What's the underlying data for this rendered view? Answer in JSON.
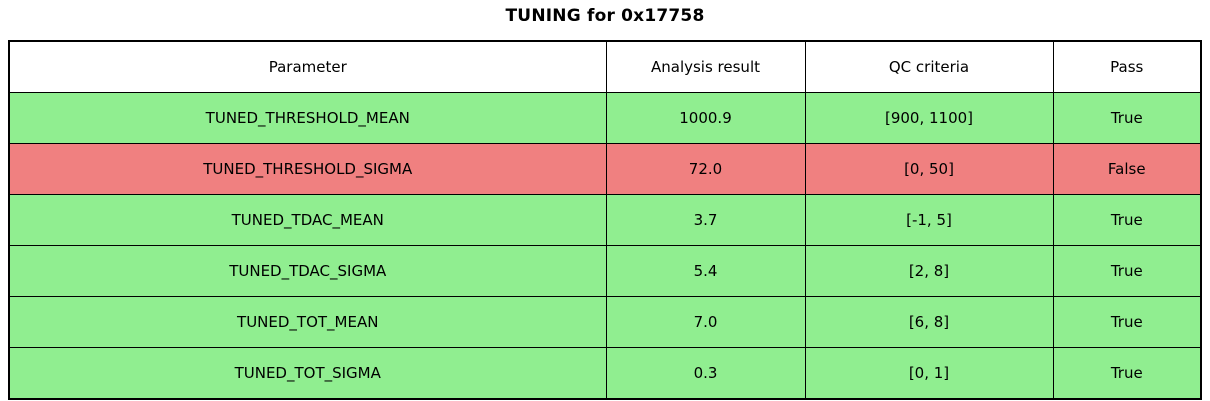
{
  "title": "TUNING for 0x17758",
  "colors": {
    "pass": "#90EE90",
    "fail": "#F08080",
    "header_bg": "#FFFFFF",
    "border": "#000000",
    "text": "#000000"
  },
  "table": {
    "headers": [
      "Parameter",
      "Analysis result",
      "QC criteria",
      "Pass"
    ],
    "rows": [
      {
        "parameter": "TUNED_THRESHOLD_MEAN",
        "result": "1000.9",
        "criteria": "[900, 1100]",
        "pass": "True",
        "status": "pass"
      },
      {
        "parameter": "TUNED_THRESHOLD_SIGMA",
        "result": "72.0",
        "criteria": "[0, 50]",
        "pass": "False",
        "status": "fail"
      },
      {
        "parameter": "TUNED_TDAC_MEAN",
        "result": "3.7",
        "criteria": "[-1, 5]",
        "pass": "True",
        "status": "pass"
      },
      {
        "parameter": "TUNED_TDAC_SIGMA",
        "result": "5.4",
        "criteria": "[2, 8]",
        "pass": "True",
        "status": "pass"
      },
      {
        "parameter": "TUNED_TOT_MEAN",
        "result": "7.0",
        "criteria": "[6, 8]",
        "pass": "True",
        "status": "pass"
      },
      {
        "parameter": "TUNED_TOT_SIGMA",
        "result": "0.3",
        "criteria": "[0, 1]",
        "pass": "True",
        "status": "pass"
      }
    ]
  },
  "chart_data": {
    "type": "table",
    "title": "TUNING for 0x17758",
    "columns": [
      "Parameter",
      "Analysis result",
      "QC criteria",
      "Pass"
    ],
    "rows": [
      [
        "TUNED_THRESHOLD_MEAN",
        1000.9,
        "[900, 1100]",
        true
      ],
      [
        "TUNED_THRESHOLD_SIGMA",
        72.0,
        "[0, 50]",
        false
      ],
      [
        "TUNED_TDAC_MEAN",
        3.7,
        "[-1, 5]",
        true
      ],
      [
        "TUNED_TDAC_SIGMA",
        5.4,
        "[2, 8]",
        true
      ],
      [
        "TUNED_TOT_MEAN",
        7.0,
        "[6, 8]",
        true
      ],
      [
        "TUNED_TOT_SIGMA",
        0.3,
        "[0, 1]",
        true
      ]
    ],
    "row_colors": [
      "#90EE90",
      "#F08080",
      "#90EE90",
      "#90EE90",
      "#90EE90",
      "#90EE90"
    ],
    "header_color": "#FFFFFF"
  }
}
